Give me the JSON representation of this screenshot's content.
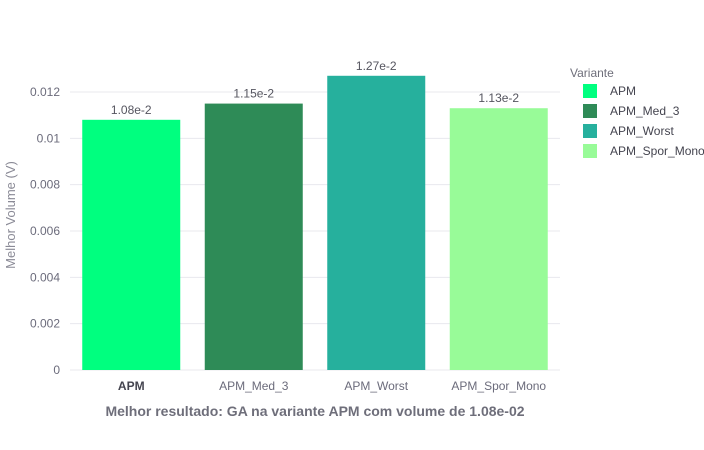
{
  "chart_data": {
    "type": "bar",
    "categories": [
      "APM",
      "APM_Med_3",
      "APM_Worst",
      "APM_Spor_Mono"
    ],
    "values": [
      0.0108,
      0.0115,
      0.0127,
      0.0113
    ],
    "data_labels": [
      "1.08e-2",
      "1.15e-2",
      "1.27e-2",
      "1.13e-2"
    ],
    "colors": [
      "#00ff7f",
      "#2e8b57",
      "#26b09d",
      "#98fb98"
    ],
    "highlight_category": "APM",
    "xlabel": "Melhor resultado: GA na variante APM com volume de 1.08e-02",
    "ylabel": "Melhor Volume (V)",
    "ylim": [
      0,
      0.013
    ],
    "yticks": [
      0,
      0.002,
      0.004,
      0.006,
      0.008,
      0.01,
      0.012
    ],
    "ytick_labels": [
      "0",
      "0.002",
      "0.004",
      "0.006",
      "0.008",
      "0.01",
      "0.012"
    ],
    "grid": true,
    "legend": {
      "title": "Variante",
      "placement": "right",
      "entries": [
        "APM",
        "APM_Med_3",
        "APM_Worst",
        "APM_Spor_Mono"
      ]
    }
  }
}
